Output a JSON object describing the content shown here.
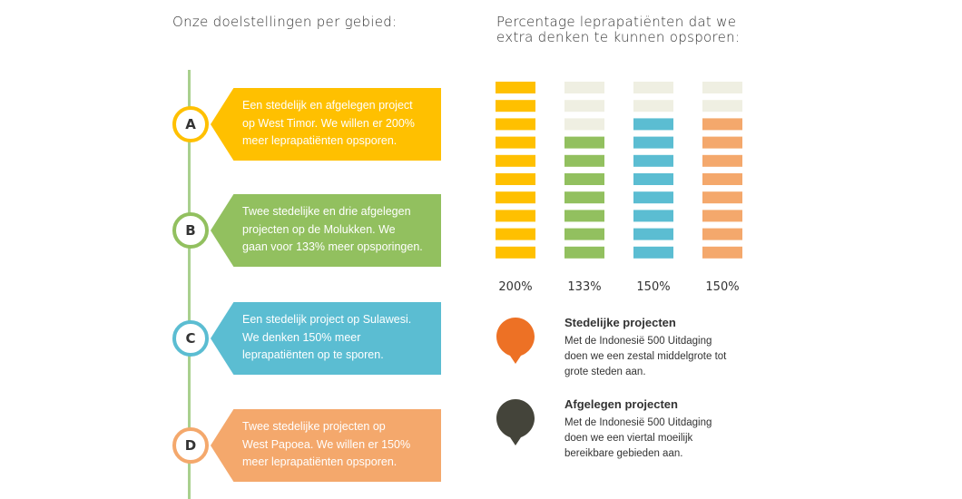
{
  "left_heading": "Onze doelstellingen per gebied:",
  "right_heading_lines": [
    "Percentage leprapatiënten dat we",
    "extra denken te kunnen opsporen:"
  ],
  "goals": [
    {
      "letter": "A",
      "color": "#ffc000",
      "lines": [
        "Een stedelijk en afgelegen project",
        "op West Timor. We willen er 200%",
        "meer leprapatiënten opsporen."
      ]
    },
    {
      "letter": "B",
      "color": "#92c05f",
      "lines": [
        "Twee stedelijke en drie afgelegen",
        "projecten op de Molukken. We",
        "gaan voor 133% meer opsporingen."
      ]
    },
    {
      "letter": "C",
      "color": "#5bbdd2",
      "lines": [
        "Een stedelijk project op Sulawesi.",
        "We denken 150% meer",
        "leprapatiënten op te sporen."
      ]
    },
    {
      "letter": "D",
      "color": "#f4a86c",
      "lines": [
        "Twee stedelijke projecten op",
        "West Papoea. We willen er 150%",
        "meer leprapatiënten opsporen."
      ]
    }
  ],
  "chart_data": {
    "type": "bar",
    "categories": [
      "A",
      "B",
      "C",
      "D"
    ],
    "values": [
      200,
      133,
      150,
      150
    ],
    "tick_labels": [
      "200%",
      "133%",
      "150%",
      "150%"
    ],
    "ylim": [
      0,
      200
    ],
    "segments_total": 10,
    "colors": [
      "#ffc000",
      "#92c05f",
      "#5bbdd2",
      "#f4a86c"
    ],
    "empty_color": "#efefe2"
  },
  "legend": [
    {
      "title": "Stedelijke projecten",
      "icon": "orange-pin-icon",
      "color": "#ed7125",
      "lines": [
        "Met de Indonesië 500 Uitdaging",
        "doen we een zestal middelgrote tot",
        "grote steden aan."
      ]
    },
    {
      "title": "Afgelegen projecten",
      "icon": "dark-pin-icon",
      "color": "#44443a",
      "lines": [
        "Met de Indonesië 500 Uitdaging",
        "doen we een viertal moeilijk",
        "bereikbare gebieden aan."
      ]
    }
  ]
}
